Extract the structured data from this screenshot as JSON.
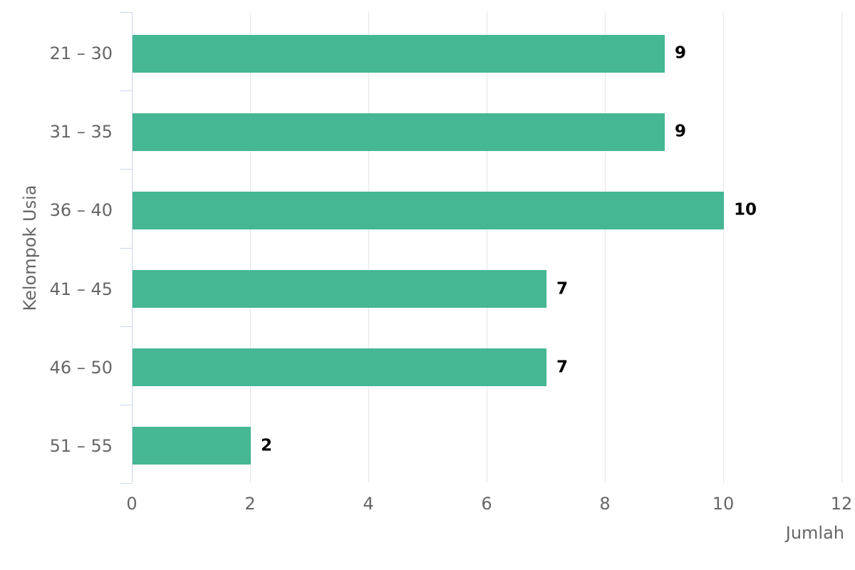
{
  "chart_data": {
    "type": "bar",
    "orientation": "horizontal",
    "title": "",
    "categories": [
      "21 – 30",
      "31 – 35",
      "36 – 40",
      "41 – 45",
      "46 – 50",
      "51 – 55"
    ],
    "values": [
      9,
      9,
      10,
      7,
      7,
      2
    ],
    "xlabel": "Jumlah",
    "ylabel": "Kelompok Usia",
    "xlim": [
      0,
      12
    ],
    "xticks": [
      0,
      2,
      4,
      6,
      8,
      10,
      12
    ],
    "grid": true,
    "legend": false,
    "data_labels_shown": true,
    "colors": {
      "bar": "#45b794",
      "gridline": "#e6e6e6",
      "axis_line": "#ccd6eb",
      "axis_label": "#666666",
      "data_label": "#000000",
      "background": "#ffffff"
    }
  }
}
